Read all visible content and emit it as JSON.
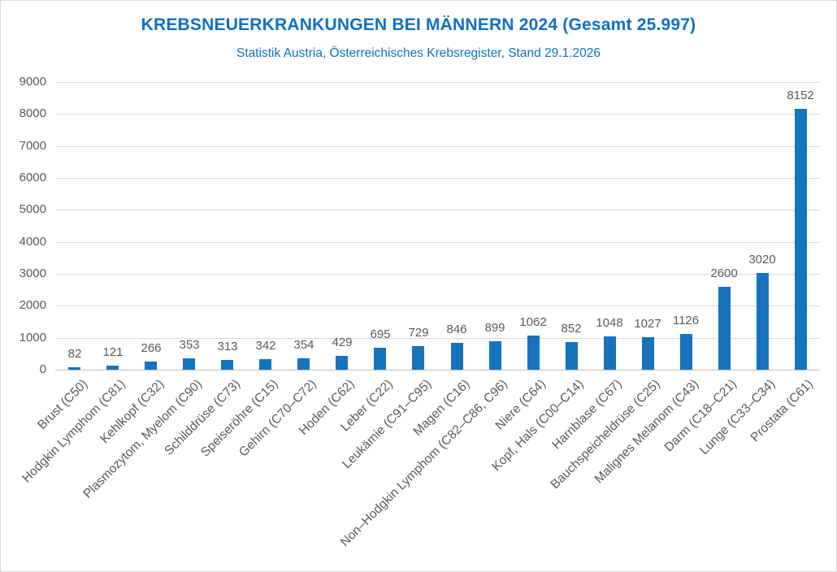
{
  "page": {
    "background": "#ffffff",
    "border_color": "#d6d6d6"
  },
  "header": {
    "title": "KREBSNEUERKRANKUNGEN BEI MÄNNERN 2024 (Gesamt 25.997)",
    "subtitle": "Statistik Austria, Österreichisches Krebsregister, Stand 29.1.2026",
    "title_color": "#1170c4",
    "subtitle_color": "#1170c4"
  },
  "chart_data": {
    "type": "bar",
    "title": "KREBSNEUERKRANKUNGEN BEI MÄNNERN 2024 (Gesamt 25.997)",
    "subtitle": "Statistik Austria, Österreichisches Krebsregister, Stand 29.1.2026",
    "categories": [
      "Brust (C50)",
      "Hodgkin Lymphom (C81)",
      "Kehlkopf (C32)",
      "Plasmozytom, Myelom (C90)",
      "Schilddrüse (C73)",
      "Speiseröhre (C15)",
      "Gehirn (C70–C72)",
      "Hoden (C62)",
      "Leber (C22)",
      "Leukämie (C91–C95)",
      "Magen (C16)",
      "Non–Hodgkin Lymphom (C82–C86, C96)",
      "Niere (C64)",
      "Kopf, Hals (C00–C14)",
      "Harnblase (C67)",
      "Bauchspeicheldrüse (C25)",
      "Malignes Melanom (C43)",
      "Darm (C18–C21)",
      "Lunge (C33–C34)",
      "Prostata (C61)"
    ],
    "values": [
      82,
      121,
      266,
      353,
      313,
      342,
      354,
      429,
      695,
      729,
      846,
      899,
      1062,
      852,
      1048,
      1027,
      1126,
      2600,
      3020,
      8152
    ],
    "xlabel": "",
    "ylabel": "",
    "ylim": [
      0,
      9000
    ],
    "yticks": [
      0,
      1000,
      2000,
      3000,
      4000,
      5000,
      6000,
      7000,
      8000,
      9000
    ],
    "grid": true,
    "legend": "none",
    "data_labels": true,
    "bar_color": "#1673bd",
    "text_color": "#595959",
    "gridline_color": "#d9d9d9",
    "axis_line_color": "#bfbfbf"
  }
}
